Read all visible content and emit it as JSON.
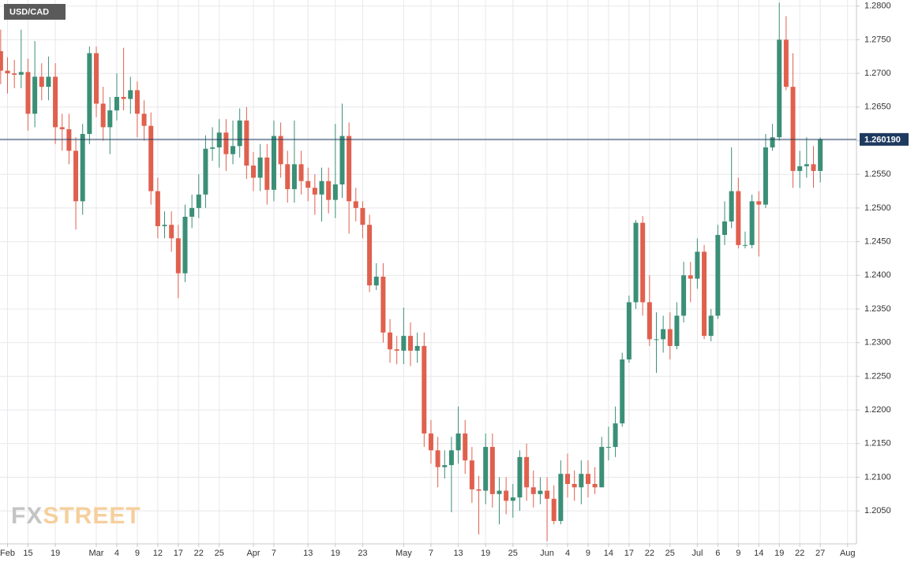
{
  "chart_data": {
    "type": "candlestick",
    "title": "USD/CAD",
    "watermark": [
      "FX",
      "STREET"
    ],
    "up_color": "#3b8f77",
    "down_color": "#e0604e",
    "grid": true,
    "xlim": [
      -0.1,
      125.3
    ],
    "ylim": [
      1.2001,
      1.2809
    ],
    "yticks": [
      {
        "value": 1.205,
        "label": "1.2050"
      },
      {
        "value": 1.21,
        "label": "1.2100"
      },
      {
        "value": 1.215,
        "label": "1.2150"
      },
      {
        "value": 1.22,
        "label": "1.2200"
      },
      {
        "value": 1.225,
        "label": "1.2250"
      },
      {
        "value": 1.23,
        "label": "1.2300"
      },
      {
        "value": 1.235,
        "label": "1.2350"
      },
      {
        "value": 1.24,
        "label": "1.2400"
      },
      {
        "value": 1.245,
        "label": "1.2450"
      },
      {
        "value": 1.25,
        "label": "1.2500"
      },
      {
        "value": 1.255,
        "label": "1.2550"
      },
      {
        "value": 1.26,
        "label": "1.2600"
      },
      {
        "value": 1.265,
        "label": "1.2650"
      },
      {
        "value": 1.27,
        "label": "1.2700"
      },
      {
        "value": 1.275,
        "label": "1.2750"
      },
      {
        "value": 1.28,
        "label": "1.2800"
      }
    ],
    "xticks": [
      {
        "value": 1,
        "label": "Feb"
      },
      {
        "value": 4,
        "label": "15"
      },
      {
        "value": 8,
        "label": "19"
      },
      {
        "value": 14,
        "label": "Mar"
      },
      {
        "value": 17,
        "label": "4"
      },
      {
        "value": 20,
        "label": "9"
      },
      {
        "value": 23,
        "label": "12"
      },
      {
        "value": 26,
        "label": "17"
      },
      {
        "value": 29,
        "label": "22"
      },
      {
        "value": 32,
        "label": "25"
      },
      {
        "value": 37,
        "label": "Apr"
      },
      {
        "value": 40,
        "label": "7"
      },
      {
        "value": 45,
        "label": "13"
      },
      {
        "value": 49,
        "label": "19"
      },
      {
        "value": 53,
        "label": "23"
      },
      {
        "value": 59,
        "label": "May"
      },
      {
        "value": 63,
        "label": "7"
      },
      {
        "value": 67,
        "label": "13"
      },
      {
        "value": 71,
        "label": "19"
      },
      {
        "value": 75,
        "label": "25"
      },
      {
        "value": 80,
        "label": "Jun"
      },
      {
        "value": 83,
        "label": "4"
      },
      {
        "value": 86,
        "label": "9"
      },
      {
        "value": 89,
        "label": "14"
      },
      {
        "value": 92,
        "label": "17"
      },
      {
        "value": 95,
        "label": "22"
      },
      {
        "value": 98,
        "label": "25"
      },
      {
        "value": 102,
        "label": "Jul"
      },
      {
        "value": 105,
        "label": "6"
      },
      {
        "value": 108,
        "label": "9"
      },
      {
        "value": 111,
        "label": "14"
      },
      {
        "value": 114,
        "label": "19"
      },
      {
        "value": 117,
        "label": "22"
      },
      {
        "value": 120,
        "label": "27"
      },
      {
        "value": 124,
        "label": "Aug"
      }
    ],
    "last_price": {
      "value": 1.26019,
      "label": "1.260190",
      "color": "#1f3a5f"
    },
    "open": [
      1.2733,
      1.2704,
      1.27,
      1.2698,
      1.2702,
      1.264,
      1.2695,
      1.268,
      1.2695,
      1.262,
      1.2617,
      1.2585,
      1.251,
      1.261,
      1.273,
      1.2655,
      1.262,
      1.2645,
      1.2665,
      1.2662,
      1.2675,
      1.264,
      1.2622,
      1.2525,
      1.2473,
      1.2475,
      1.2455,
      1.2403,
      1.2487,
      1.25,
      1.252,
      1.2588,
      1.259,
      1.2612,
      1.258,
      1.2592,
      1.263,
      1.2563,
      1.2545,
      1.2575,
      1.2527,
      1.2607,
      1.2565,
      1.2528,
      1.2565,
      1.254,
      1.253,
      1.252,
      1.254,
      1.2512,
      1.2535,
      1.2607,
      1.251,
      1.25,
      1.2475,
      1.2385,
      1.2398,
      1.2315,
      1.229,
      1.2288,
      1.231,
      1.2288,
      1.2295,
      1.2165,
      1.214,
      1.2115,
      1.2118,
      1.214,
      1.2165,
      1.2125,
      1.2082,
      1.208,
      1.2145,
      1.2075,
      1.208,
      1.2065,
      1.207,
      1.213,
      1.2085,
      1.2075,
      1.208,
      1.2068,
      1.2035,
      1.2105,
      1.209,
      1.2085,
      1.2105,
      1.209,
      1.2085,
      1.2145,
      1.2145,
      1.218,
      1.2275,
      1.236,
      1.2478,
      1.236,
      1.2305,
      1.2305,
      1.232,
      1.2295,
      1.234,
      1.24,
      1.2395,
      1.2435,
      1.231,
      1.234,
      1.246,
      1.248,
      1.2525,
      1.2445,
      1.2445,
      1.251,
      1.2505,
      1.259,
      1.2605,
      1.275,
      1.268,
      1.2555,
      1.2562,
      1.2565,
      1.2555
    ],
    "high": [
      1.2765,
      1.2724,
      1.272,
      1.2765,
      1.2722,
      1.2748,
      1.2715,
      1.2725,
      1.2715,
      1.264,
      1.264,
      1.2605,
      1.2625,
      1.274,
      1.274,
      1.268,
      1.2665,
      1.27,
      1.2738,
      1.2695,
      1.2688,
      1.266,
      1.2642,
      1.2545,
      1.2495,
      1.2495,
      1.2475,
      1.2505,
      1.252,
      1.255,
      1.2608,
      1.262,
      1.2632,
      1.2632,
      1.263,
      1.2648,
      1.265,
      1.2583,
      1.2595,
      1.2595,
      1.263,
      1.2627,
      1.2585,
      1.263,
      1.2585,
      1.256,
      1.255,
      1.256,
      1.256,
      1.2625,
      1.2655,
      1.2627,
      1.253,
      1.251,
      1.249,
      1.2418,
      1.2418,
      1.2335,
      1.231,
      1.2352,
      1.233,
      1.2315,
      1.2315,
      1.2185,
      1.216,
      1.214,
      1.216,
      1.2205,
      1.2185,
      1.2145,
      1.2102,
      1.2165,
      1.2165,
      1.21,
      1.21,
      1.209,
      1.214,
      1.215,
      1.211,
      1.21,
      1.21,
      1.2088,
      1.2125,
      1.2135,
      1.211,
      1.2125,
      1.2125,
      1.2115,
      1.216,
      1.2175,
      1.2205,
      1.2285,
      1.237,
      1.2482,
      1.2488,
      1.24,
      1.2345,
      1.234,
      1.2345,
      1.236,
      1.242,
      1.242,
      1.2455,
      1.2445,
      1.235,
      1.2475,
      1.251,
      1.259,
      1.2545,
      1.2465,
      1.252,
      1.2525,
      1.261,
      1.2625,
      1.2805,
      1.2785,
      1.273,
      1.2585,
      1.2605,
      1.2592,
      1.2605
    ],
    "low": [
      1.2684,
      1.267,
      1.2678,
      1.2678,
      1.2615,
      1.262,
      1.266,
      1.266,
      1.2595,
      1.2585,
      1.2565,
      1.2468,
      1.249,
      1.2595,
      1.2635,
      1.26,
      1.258,
      1.263,
      1.2645,
      1.264,
      1.2605,
      1.26,
      1.2505,
      1.2455,
      1.2455,
      1.2435,
      1.2366,
      1.239,
      1.247,
      1.2485,
      1.25,
      1.257,
      1.256,
      1.2555,
      1.2565,
      1.2575,
      1.2543,
      1.2525,
      1.2525,
      1.2505,
      1.251,
      1.2545,
      1.2508,
      1.2508,
      1.252,
      1.251,
      1.249,
      1.248,
      1.2492,
      1.2485,
      1.2515,
      1.2462,
      1.248,
      1.2455,
      1.2375,
      1.2378,
      1.23,
      1.227,
      1.2268,
      1.2268,
      1.2265,
      1.227,
      1.2145,
      1.212,
      1.2085,
      1.2098,
      1.2048,
      1.212,
      1.2105,
      1.2062,
      1.2015,
      1.206,
      1.2055,
      1.203,
      1.2045,
      1.204,
      1.205,
      1.2065,
      1.2055,
      1.206,
      1.2005,
      1.203,
      1.203,
      1.207,
      1.2065,
      1.206,
      1.207,
      1.2075,
      1.2085,
      1.2125,
      1.213,
      1.2175,
      1.227,
      1.235,
      1.234,
      1.2295,
      1.2255,
      1.2285,
      1.2275,
      1.229,
      1.233,
      1.236,
      1.238,
      1.2305,
      1.2302,
      1.2335,
      1.2445,
      1.247,
      1.244,
      1.244,
      1.244,
      1.2428,
      1.25,
      1.2585,
      1.26,
      1.2675,
      1.253,
      1.253,
      1.2545,
      1.253,
      1.2538
    ],
    "close": [
      1.2704,
      1.27,
      1.2698,
      1.2702,
      1.264,
      1.2695,
      1.268,
      1.2695,
      1.262,
      1.2617,
      1.2585,
      1.251,
      1.261,
      1.273,
      1.2655,
      1.262,
      1.2645,
      1.2665,
      1.2662,
      1.2675,
      1.264,
      1.2622,
      1.2525,
      1.2473,
      1.2475,
      1.2455,
      1.2403,
      1.2487,
      1.25,
      1.252,
      1.2588,
      1.259,
      1.2612,
      1.258,
      1.2592,
      1.263,
      1.2563,
      1.2545,
      1.2575,
      1.2527,
      1.2607,
      1.2565,
      1.2528,
      1.2565,
      1.254,
      1.253,
      1.252,
      1.254,
      1.2512,
      1.2535,
      1.2607,
      1.251,
      1.25,
      1.2475,
      1.2385,
      1.2398,
      1.2315,
      1.229,
      1.2288,
      1.231,
      1.2288,
      1.2295,
      1.2165,
      1.214,
      1.2115,
      1.2118,
      1.214,
      1.2165,
      1.2125,
      1.2082,
      1.208,
      1.2145,
      1.2075,
      1.208,
      1.2065,
      1.207,
      1.213,
      1.2085,
      1.2075,
      1.208,
      1.2068,
      1.2035,
      1.2105,
      1.209,
      1.2085,
      1.2105,
      1.209,
      1.2085,
      1.2145,
      1.2145,
      1.218,
      1.2275,
      1.236,
      1.2478,
      1.236,
      1.2305,
      1.2305,
      1.232,
      1.2295,
      1.234,
      1.24,
      1.2395,
      1.2435,
      1.231,
      1.234,
      1.246,
      1.248,
      1.2525,
      1.2445,
      1.2445,
      1.251,
      1.2505,
      1.259,
      1.2605,
      1.275,
      1.268,
      1.2555,
      1.2562,
      1.2565,
      1.2555,
      1.26019
    ]
  }
}
